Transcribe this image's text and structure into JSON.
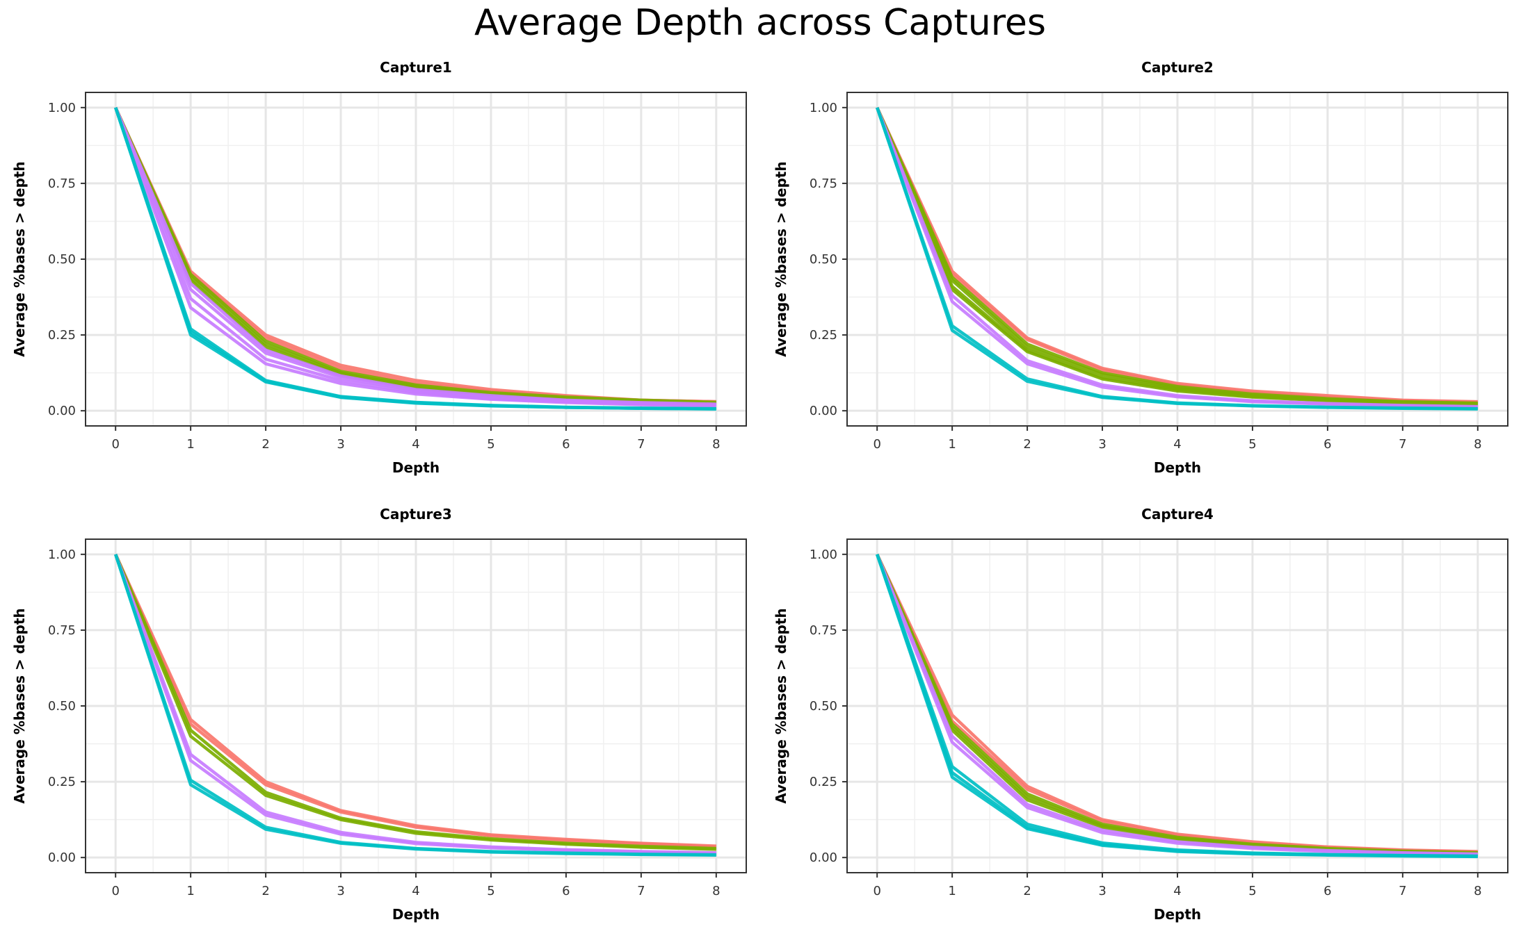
{
  "title": "Average Depth across Captures",
  "colors": {
    "red": "#F8766D",
    "green": "#7CAE00",
    "cyan": "#00BFC4",
    "purple": "#C77CFF"
  },
  "chart_data": [
    {
      "type": "line",
      "title": "Capture1",
      "xlabel": "Depth",
      "ylabel": "Average %bases > depth",
      "x": [
        0,
        1,
        2,
        3,
        4,
        5,
        6,
        7,
        8
      ],
      "x_ticks": [
        "0",
        "1",
        "2",
        "3",
        "4",
        "5",
        "6",
        "7",
        "8"
      ],
      "y_ticks": [
        "0.00",
        "0.25",
        "0.50",
        "0.75",
        "1.00"
      ],
      "xlim": [
        -0.4,
        8.4
      ],
      "ylim": [
        -0.05,
        1.05
      ],
      "grid": true,
      "series": [
        {
          "color": "#F8766D",
          "values": [
            1.0,
            0.46,
            0.25,
            0.15,
            0.1,
            0.07,
            0.05,
            0.035,
            0.03
          ]
        },
        {
          "color": "#F8766D",
          "values": [
            1.0,
            0.45,
            0.24,
            0.14,
            0.09,
            0.065,
            0.045,
            0.035,
            0.03
          ]
        },
        {
          "color": "#7CAE00",
          "values": [
            1.0,
            0.45,
            0.23,
            0.13,
            0.085,
            0.06,
            0.045,
            0.035,
            0.028
          ]
        },
        {
          "color": "#7CAE00",
          "values": [
            1.0,
            0.44,
            0.22,
            0.125,
            0.08,
            0.055,
            0.04,
            0.032,
            0.025
          ]
        },
        {
          "color": "#7CAE00",
          "values": [
            1.0,
            0.43,
            0.21,
            0.12,
            0.075,
            0.05,
            0.04,
            0.03,
            0.025
          ]
        },
        {
          "color": "#C77CFF",
          "values": [
            1.0,
            0.42,
            0.2,
            0.115,
            0.07,
            0.05,
            0.035,
            0.027,
            0.022
          ]
        },
        {
          "color": "#C77CFF",
          "values": [
            1.0,
            0.4,
            0.19,
            0.11,
            0.065,
            0.045,
            0.033,
            0.025,
            0.02
          ]
        },
        {
          "color": "#C77CFF",
          "values": [
            1.0,
            0.37,
            0.17,
            0.1,
            0.06,
            0.04,
            0.03,
            0.022,
            0.018
          ]
        },
        {
          "color": "#C77CFF",
          "values": [
            1.0,
            0.34,
            0.155,
            0.09,
            0.055,
            0.038,
            0.027,
            0.02,
            0.016
          ]
        },
        {
          "color": "#00BFC4",
          "values": [
            1.0,
            0.27,
            0.1,
            0.047,
            0.028,
            0.018,
            0.012,
            0.009,
            0.007
          ]
        },
        {
          "color": "#00BFC4",
          "values": [
            1.0,
            0.26,
            0.097,
            0.045,
            0.026,
            0.017,
            0.011,
            0.008,
            0.006
          ]
        },
        {
          "color": "#00BFC4",
          "values": [
            1.0,
            0.25,
            0.095,
            0.044,
            0.025,
            0.016,
            0.011,
            0.008,
            0.006
          ]
        }
      ]
    },
    {
      "type": "line",
      "title": "Capture2",
      "xlabel": "Depth",
      "ylabel": "Average %bases > depth",
      "x": [
        0,
        1,
        2,
        3,
        4,
        5,
        6,
        7,
        8
      ],
      "x_ticks": [
        "0",
        "1",
        "2",
        "3",
        "4",
        "5",
        "6",
        "7",
        "8"
      ],
      "y_ticks": [
        "0.00",
        "0.25",
        "0.50",
        "0.75",
        "1.00"
      ],
      "xlim": [
        -0.4,
        8.4
      ],
      "ylim": [
        -0.05,
        1.05
      ],
      "grid": true,
      "series": [
        {
          "color": "#F8766D",
          "values": [
            1.0,
            0.46,
            0.24,
            0.14,
            0.09,
            0.065,
            0.05,
            0.035,
            0.03
          ]
        },
        {
          "color": "#F8766D",
          "values": [
            1.0,
            0.45,
            0.235,
            0.135,
            0.085,
            0.06,
            0.045,
            0.033,
            0.028
          ]
        },
        {
          "color": "#7CAE00",
          "values": [
            1.0,
            0.44,
            0.22,
            0.125,
            0.08,
            0.055,
            0.04,
            0.03,
            0.025
          ]
        },
        {
          "color": "#7CAE00",
          "values": [
            1.0,
            0.43,
            0.21,
            0.12,
            0.075,
            0.05,
            0.037,
            0.028,
            0.023
          ]
        },
        {
          "color": "#7CAE00",
          "values": [
            1.0,
            0.41,
            0.2,
            0.11,
            0.07,
            0.048,
            0.035,
            0.027,
            0.022
          ]
        },
        {
          "color": "#7CAE00",
          "values": [
            1.0,
            0.4,
            0.195,
            0.105,
            0.065,
            0.045,
            0.033,
            0.025,
            0.02
          ]
        },
        {
          "color": "#C77CFF",
          "values": [
            1.0,
            0.38,
            0.165,
            0.085,
            0.05,
            0.033,
            0.024,
            0.018,
            0.014
          ]
        },
        {
          "color": "#C77CFF",
          "values": [
            1.0,
            0.36,
            0.155,
            0.078,
            0.046,
            0.03,
            0.022,
            0.016,
            0.012
          ]
        },
        {
          "color": "#00BFC4",
          "values": [
            1.0,
            0.28,
            0.105,
            0.047,
            0.026,
            0.017,
            0.012,
            0.009,
            0.007
          ]
        },
        {
          "color": "#00BFC4",
          "values": [
            1.0,
            0.265,
            0.097,
            0.044,
            0.024,
            0.016,
            0.011,
            0.008,
            0.006
          ]
        }
      ]
    },
    {
      "type": "line",
      "title": "Capture3",
      "xlabel": "Depth",
      "ylabel": "Average %bases > depth",
      "x": [
        0,
        1,
        2,
        3,
        4,
        5,
        6,
        7,
        8
      ],
      "x_ticks": [
        "0",
        "1",
        "2",
        "3",
        "4",
        "5",
        "6",
        "7",
        "8"
      ],
      "y_ticks": [
        "0.00",
        "0.25",
        "0.50",
        "0.75",
        "1.00"
      ],
      "xlim": [
        -0.4,
        8.4
      ],
      "ylim": [
        -0.05,
        1.05
      ],
      "grid": true,
      "series": [
        {
          "color": "#F8766D",
          "values": [
            1.0,
            0.455,
            0.25,
            0.155,
            0.105,
            0.075,
            0.06,
            0.047,
            0.038
          ]
        },
        {
          "color": "#F8766D",
          "values": [
            1.0,
            0.44,
            0.24,
            0.15,
            0.1,
            0.072,
            0.056,
            0.045,
            0.035
          ]
        },
        {
          "color": "#7CAE00",
          "values": [
            1.0,
            0.42,
            0.215,
            0.13,
            0.085,
            0.062,
            0.047,
            0.037,
            0.03
          ]
        },
        {
          "color": "#7CAE00",
          "values": [
            1.0,
            0.4,
            0.205,
            0.125,
            0.08,
            0.058,
            0.044,
            0.034,
            0.027
          ]
        },
        {
          "color": "#C77CFF",
          "values": [
            1.0,
            0.34,
            0.15,
            0.083,
            0.05,
            0.035,
            0.026,
            0.02,
            0.016
          ]
        },
        {
          "color": "#C77CFF",
          "values": [
            1.0,
            0.32,
            0.14,
            0.077,
            0.046,
            0.032,
            0.024,
            0.018,
            0.014
          ]
        },
        {
          "color": "#00BFC4",
          "values": [
            1.0,
            0.255,
            0.1,
            0.05,
            0.03,
            0.02,
            0.015,
            0.011,
            0.009
          ]
        },
        {
          "color": "#00BFC4",
          "values": [
            1.0,
            0.24,
            0.093,
            0.047,
            0.028,
            0.018,
            0.013,
            0.01,
            0.008
          ]
        }
      ]
    },
    {
      "type": "line",
      "title": "Capture4",
      "xlabel": "Depth",
      "ylabel": "Average %bases > depth",
      "x": [
        0,
        1,
        2,
        3,
        4,
        5,
        6,
        7,
        8
      ],
      "x_ticks": [
        "0",
        "1",
        "2",
        "3",
        "4",
        "5",
        "6",
        "7",
        "8"
      ],
      "y_ticks": [
        "0.00",
        "0.25",
        "0.50",
        "0.75",
        "1.00"
      ],
      "xlim": [
        -0.4,
        8.4
      ],
      "ylim": [
        -0.05,
        1.05
      ],
      "grid": true,
      "series": [
        {
          "color": "#F8766D",
          "values": [
            1.0,
            0.47,
            0.235,
            0.125,
            0.077,
            0.052,
            0.035,
            0.025,
            0.02
          ]
        },
        {
          "color": "#F8766D",
          "values": [
            1.0,
            0.45,
            0.225,
            0.12,
            0.073,
            0.048,
            0.033,
            0.023,
            0.018
          ]
        },
        {
          "color": "#7CAE00",
          "values": [
            1.0,
            0.44,
            0.21,
            0.11,
            0.067,
            0.044,
            0.03,
            0.021,
            0.016
          ]
        },
        {
          "color": "#7CAE00",
          "values": [
            1.0,
            0.43,
            0.2,
            0.105,
            0.063,
            0.041,
            0.028,
            0.02,
            0.015
          ]
        },
        {
          "color": "#7CAE00",
          "values": [
            1.0,
            0.42,
            0.19,
            0.1,
            0.06,
            0.039,
            0.027,
            0.019,
            0.014
          ]
        },
        {
          "color": "#C77CFF",
          "values": [
            1.0,
            0.4,
            0.175,
            0.09,
            0.052,
            0.034,
            0.023,
            0.016,
            0.012
          ]
        },
        {
          "color": "#C77CFF",
          "values": [
            1.0,
            0.38,
            0.165,
            0.082,
            0.047,
            0.03,
            0.02,
            0.014,
            0.01
          ]
        },
        {
          "color": "#00BFC4",
          "values": [
            1.0,
            0.3,
            0.11,
            0.048,
            0.025,
            0.015,
            0.01,
            0.007,
            0.005
          ]
        },
        {
          "color": "#00BFC4",
          "values": [
            1.0,
            0.28,
            0.1,
            0.043,
            0.022,
            0.013,
            0.009,
            0.006,
            0.004
          ]
        },
        {
          "color": "#00BFC4",
          "values": [
            1.0,
            0.265,
            0.095,
            0.04,
            0.02,
            0.012,
            0.008,
            0.005,
            0.003
          ]
        }
      ]
    }
  ]
}
